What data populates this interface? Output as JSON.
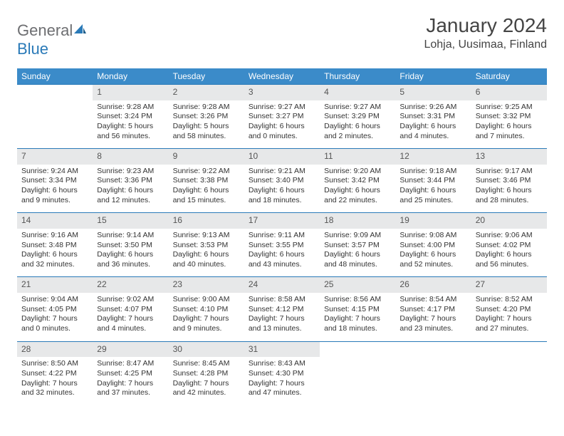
{
  "brand": {
    "word1": "General",
    "word2": "Blue"
  },
  "title": "January 2024",
  "location": "Lohja, Uusimaa, Finland",
  "colors": {
    "header_bg": "#3b8bc9",
    "header_text": "#ffffff",
    "daynum_bg": "#e7e8e9",
    "rule": "#2a7ab8",
    "text": "#333333",
    "logo_gray": "#6d6e71",
    "logo_blue": "#2a7ab8"
  },
  "weekdays": [
    "Sunday",
    "Monday",
    "Tuesday",
    "Wednesday",
    "Thursday",
    "Friday",
    "Saturday"
  ],
  "weeks": [
    [
      null,
      {
        "n": "1",
        "sr": "Sunrise: 9:28 AM",
        "ss": "Sunset: 3:24 PM",
        "d1": "Daylight: 5 hours",
        "d2": "and 56 minutes."
      },
      {
        "n": "2",
        "sr": "Sunrise: 9:28 AM",
        "ss": "Sunset: 3:26 PM",
        "d1": "Daylight: 5 hours",
        "d2": "and 58 minutes."
      },
      {
        "n": "3",
        "sr": "Sunrise: 9:27 AM",
        "ss": "Sunset: 3:27 PM",
        "d1": "Daylight: 6 hours",
        "d2": "and 0 minutes."
      },
      {
        "n": "4",
        "sr": "Sunrise: 9:27 AM",
        "ss": "Sunset: 3:29 PM",
        "d1": "Daylight: 6 hours",
        "d2": "and 2 minutes."
      },
      {
        "n": "5",
        "sr": "Sunrise: 9:26 AM",
        "ss": "Sunset: 3:31 PM",
        "d1": "Daylight: 6 hours",
        "d2": "and 4 minutes."
      },
      {
        "n": "6",
        "sr": "Sunrise: 9:25 AM",
        "ss": "Sunset: 3:32 PM",
        "d1": "Daylight: 6 hours",
        "d2": "and 7 minutes."
      }
    ],
    [
      {
        "n": "7",
        "sr": "Sunrise: 9:24 AM",
        "ss": "Sunset: 3:34 PM",
        "d1": "Daylight: 6 hours",
        "d2": "and 9 minutes."
      },
      {
        "n": "8",
        "sr": "Sunrise: 9:23 AM",
        "ss": "Sunset: 3:36 PM",
        "d1": "Daylight: 6 hours",
        "d2": "and 12 minutes."
      },
      {
        "n": "9",
        "sr": "Sunrise: 9:22 AM",
        "ss": "Sunset: 3:38 PM",
        "d1": "Daylight: 6 hours",
        "d2": "and 15 minutes."
      },
      {
        "n": "10",
        "sr": "Sunrise: 9:21 AM",
        "ss": "Sunset: 3:40 PM",
        "d1": "Daylight: 6 hours",
        "d2": "and 18 minutes."
      },
      {
        "n": "11",
        "sr": "Sunrise: 9:20 AM",
        "ss": "Sunset: 3:42 PM",
        "d1": "Daylight: 6 hours",
        "d2": "and 22 minutes."
      },
      {
        "n": "12",
        "sr": "Sunrise: 9:18 AM",
        "ss": "Sunset: 3:44 PM",
        "d1": "Daylight: 6 hours",
        "d2": "and 25 minutes."
      },
      {
        "n": "13",
        "sr": "Sunrise: 9:17 AM",
        "ss": "Sunset: 3:46 PM",
        "d1": "Daylight: 6 hours",
        "d2": "and 28 minutes."
      }
    ],
    [
      {
        "n": "14",
        "sr": "Sunrise: 9:16 AM",
        "ss": "Sunset: 3:48 PM",
        "d1": "Daylight: 6 hours",
        "d2": "and 32 minutes."
      },
      {
        "n": "15",
        "sr": "Sunrise: 9:14 AM",
        "ss": "Sunset: 3:50 PM",
        "d1": "Daylight: 6 hours",
        "d2": "and 36 minutes."
      },
      {
        "n": "16",
        "sr": "Sunrise: 9:13 AM",
        "ss": "Sunset: 3:53 PM",
        "d1": "Daylight: 6 hours",
        "d2": "and 40 minutes."
      },
      {
        "n": "17",
        "sr": "Sunrise: 9:11 AM",
        "ss": "Sunset: 3:55 PM",
        "d1": "Daylight: 6 hours",
        "d2": "and 43 minutes."
      },
      {
        "n": "18",
        "sr": "Sunrise: 9:09 AM",
        "ss": "Sunset: 3:57 PM",
        "d1": "Daylight: 6 hours",
        "d2": "and 48 minutes."
      },
      {
        "n": "19",
        "sr": "Sunrise: 9:08 AM",
        "ss": "Sunset: 4:00 PM",
        "d1": "Daylight: 6 hours",
        "d2": "and 52 minutes."
      },
      {
        "n": "20",
        "sr": "Sunrise: 9:06 AM",
        "ss": "Sunset: 4:02 PM",
        "d1": "Daylight: 6 hours",
        "d2": "and 56 minutes."
      }
    ],
    [
      {
        "n": "21",
        "sr": "Sunrise: 9:04 AM",
        "ss": "Sunset: 4:05 PM",
        "d1": "Daylight: 7 hours",
        "d2": "and 0 minutes."
      },
      {
        "n": "22",
        "sr": "Sunrise: 9:02 AM",
        "ss": "Sunset: 4:07 PM",
        "d1": "Daylight: 7 hours",
        "d2": "and 4 minutes."
      },
      {
        "n": "23",
        "sr": "Sunrise: 9:00 AM",
        "ss": "Sunset: 4:10 PM",
        "d1": "Daylight: 7 hours",
        "d2": "and 9 minutes."
      },
      {
        "n": "24",
        "sr": "Sunrise: 8:58 AM",
        "ss": "Sunset: 4:12 PM",
        "d1": "Daylight: 7 hours",
        "d2": "and 13 minutes."
      },
      {
        "n": "25",
        "sr": "Sunrise: 8:56 AM",
        "ss": "Sunset: 4:15 PM",
        "d1": "Daylight: 7 hours",
        "d2": "and 18 minutes."
      },
      {
        "n": "26",
        "sr": "Sunrise: 8:54 AM",
        "ss": "Sunset: 4:17 PM",
        "d1": "Daylight: 7 hours",
        "d2": "and 23 minutes."
      },
      {
        "n": "27",
        "sr": "Sunrise: 8:52 AM",
        "ss": "Sunset: 4:20 PM",
        "d1": "Daylight: 7 hours",
        "d2": "and 27 minutes."
      }
    ],
    [
      {
        "n": "28",
        "sr": "Sunrise: 8:50 AM",
        "ss": "Sunset: 4:22 PM",
        "d1": "Daylight: 7 hours",
        "d2": "and 32 minutes."
      },
      {
        "n": "29",
        "sr": "Sunrise: 8:47 AM",
        "ss": "Sunset: 4:25 PM",
        "d1": "Daylight: 7 hours",
        "d2": "and 37 minutes."
      },
      {
        "n": "30",
        "sr": "Sunrise: 8:45 AM",
        "ss": "Sunset: 4:28 PM",
        "d1": "Daylight: 7 hours",
        "d2": "and 42 minutes."
      },
      {
        "n": "31",
        "sr": "Sunrise: 8:43 AM",
        "ss": "Sunset: 4:30 PM",
        "d1": "Daylight: 7 hours",
        "d2": "and 47 minutes."
      },
      null,
      null,
      null
    ]
  ]
}
